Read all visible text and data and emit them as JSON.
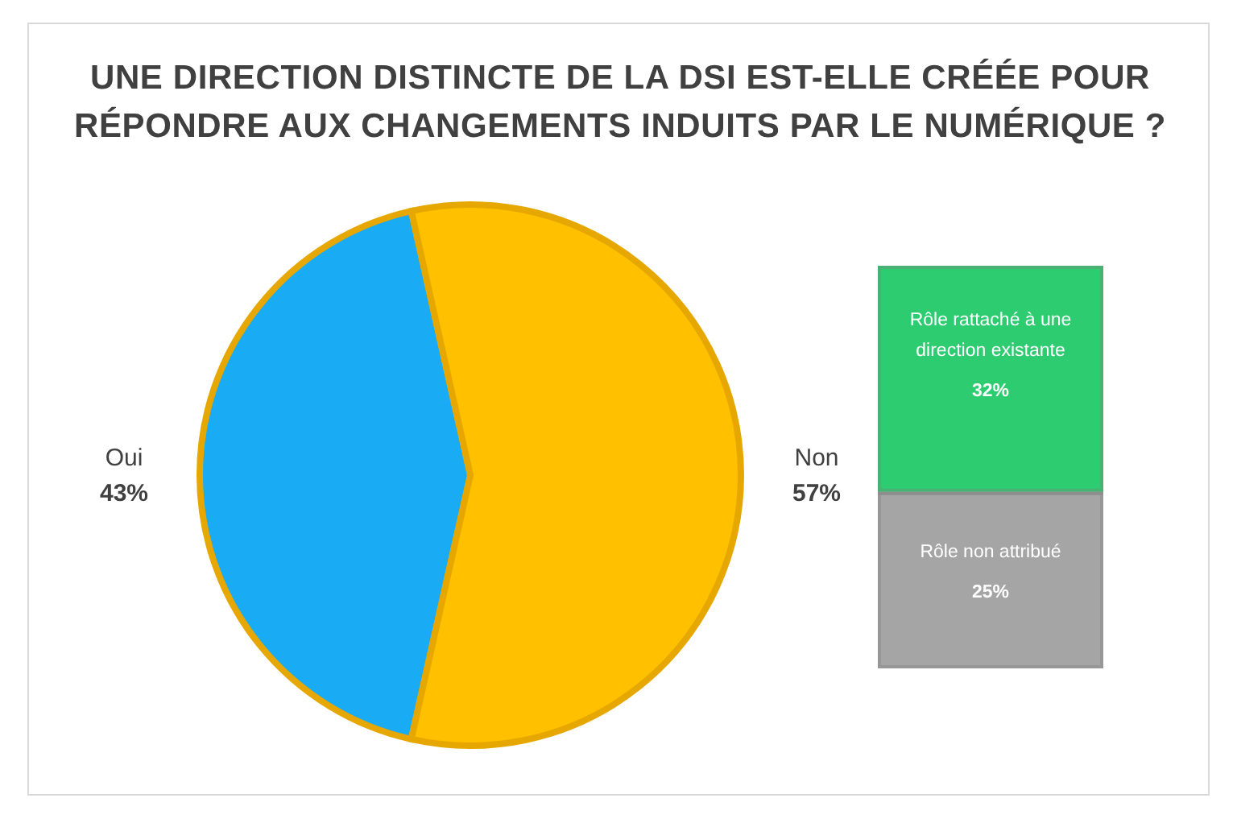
{
  "chart_data": [
    {
      "type": "pie",
      "title": "UNE DIRECTION DISTINCTE DE LA DSI EST-ELLE CRÉÉE POUR RÉPONDRE AUX CHANGEMENTS INDUITS PAR LE NUMÉRIQUE ?",
      "categories": [
        "Oui",
        "Non"
      ],
      "values": [
        43,
        57
      ],
      "colors": [
        "#1aabf5",
        "#ffc000"
      ],
      "value_labels": [
        "43%",
        "57%"
      ]
    },
    {
      "type": "bar",
      "stacked": true,
      "categories": [
        null
      ],
      "series": [
        {
          "name": "Rôle non attribué",
          "color": "#a5a5a5",
          "values": [
            25
          ],
          "value_labels": [
            "25%"
          ]
        },
        {
          "name": "Rôle rattaché à une direction existante",
          "color": "#2ecc71",
          "values": [
            32
          ],
          "value_labels": [
            "32%"
          ]
        }
      ]
    }
  ]
}
